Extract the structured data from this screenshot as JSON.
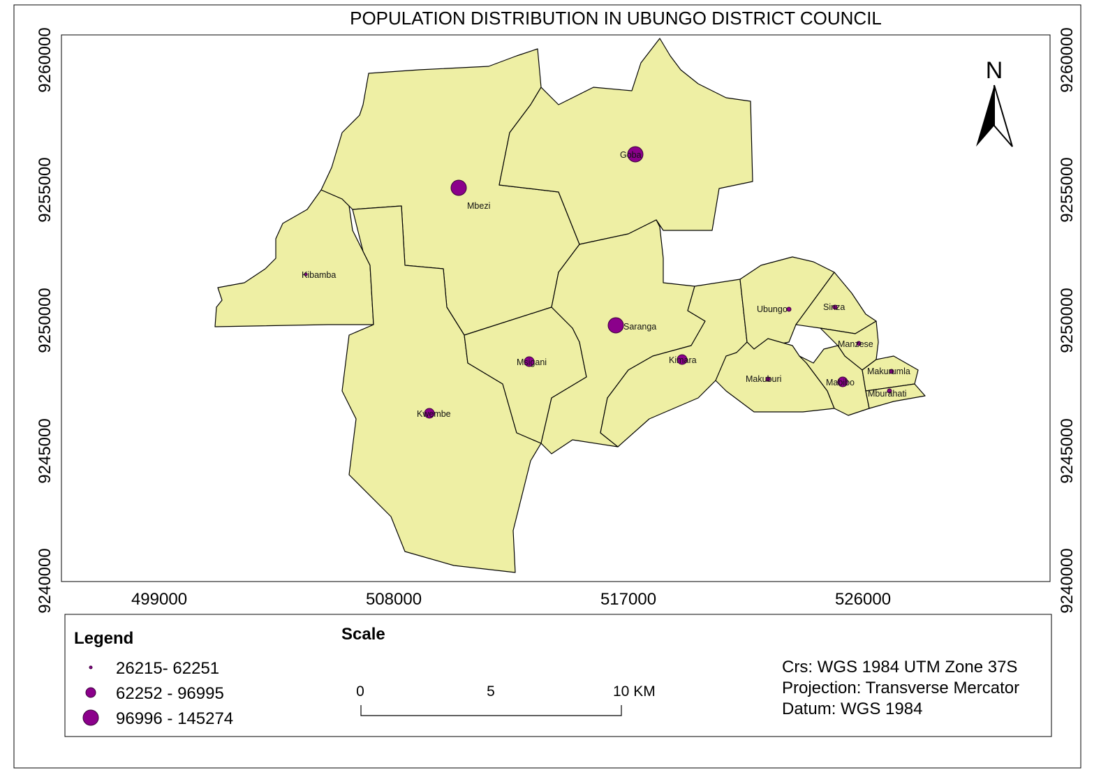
{
  "title": "POPULATION DISTRIBUTION IN UBUNGO DISTRICT COUNCIL",
  "axes": {
    "x_ticks": [
      "499000",
      "508000",
      "517000",
      "526000"
    ],
    "y_ticks_left": [
      "9260000",
      "9255000",
      "9250000",
      "9245000",
      "9240000"
    ],
    "y_ticks_right": [
      "9260000",
      "9255000",
      "9250000",
      "9245000",
      "9240000"
    ]
  },
  "north_arrow": {
    "label": "N"
  },
  "colors": {
    "ward_fill": "#EEEFA4",
    "point_fill": "#8B008B",
    "outline": "#000000"
  },
  "wards": [
    {
      "name": "Goba",
      "class": 3
    },
    {
      "name": "Mbezi",
      "class": 3
    },
    {
      "name": "Kibamba",
      "class": 1
    },
    {
      "name": "Saranga",
      "class": 3
    },
    {
      "name": "Msigani",
      "class": 2
    },
    {
      "name": "Kwembe",
      "class": 2
    },
    {
      "name": "Kimara",
      "class": 2
    },
    {
      "name": "Ubungo",
      "class": 1
    },
    {
      "name": "Sinza",
      "class": 1
    },
    {
      "name": "Manzese",
      "class": 1
    },
    {
      "name": "Makuburi",
      "class": 1
    },
    {
      "name": "Mabibo",
      "class": 2
    },
    {
      "name": "Makurumla",
      "class": 1
    },
    {
      "name": "Mburahati",
      "class": 1
    }
  ],
  "legend": {
    "title": "Legend",
    "items": [
      {
        "label": "26215- 62251"
      },
      {
        "label": "62252 - 96995"
      },
      {
        "label": "96996 - 145274"
      }
    ]
  },
  "scale": {
    "title": "Scale",
    "labels": [
      "0",
      "5",
      "10 KM"
    ]
  },
  "crs_info": {
    "crs": "Crs: WGS 1984 UTM Zone 37S",
    "projection": "Projection: Transverse Mercator",
    "datum": "Datum: WGS 1984"
  }
}
